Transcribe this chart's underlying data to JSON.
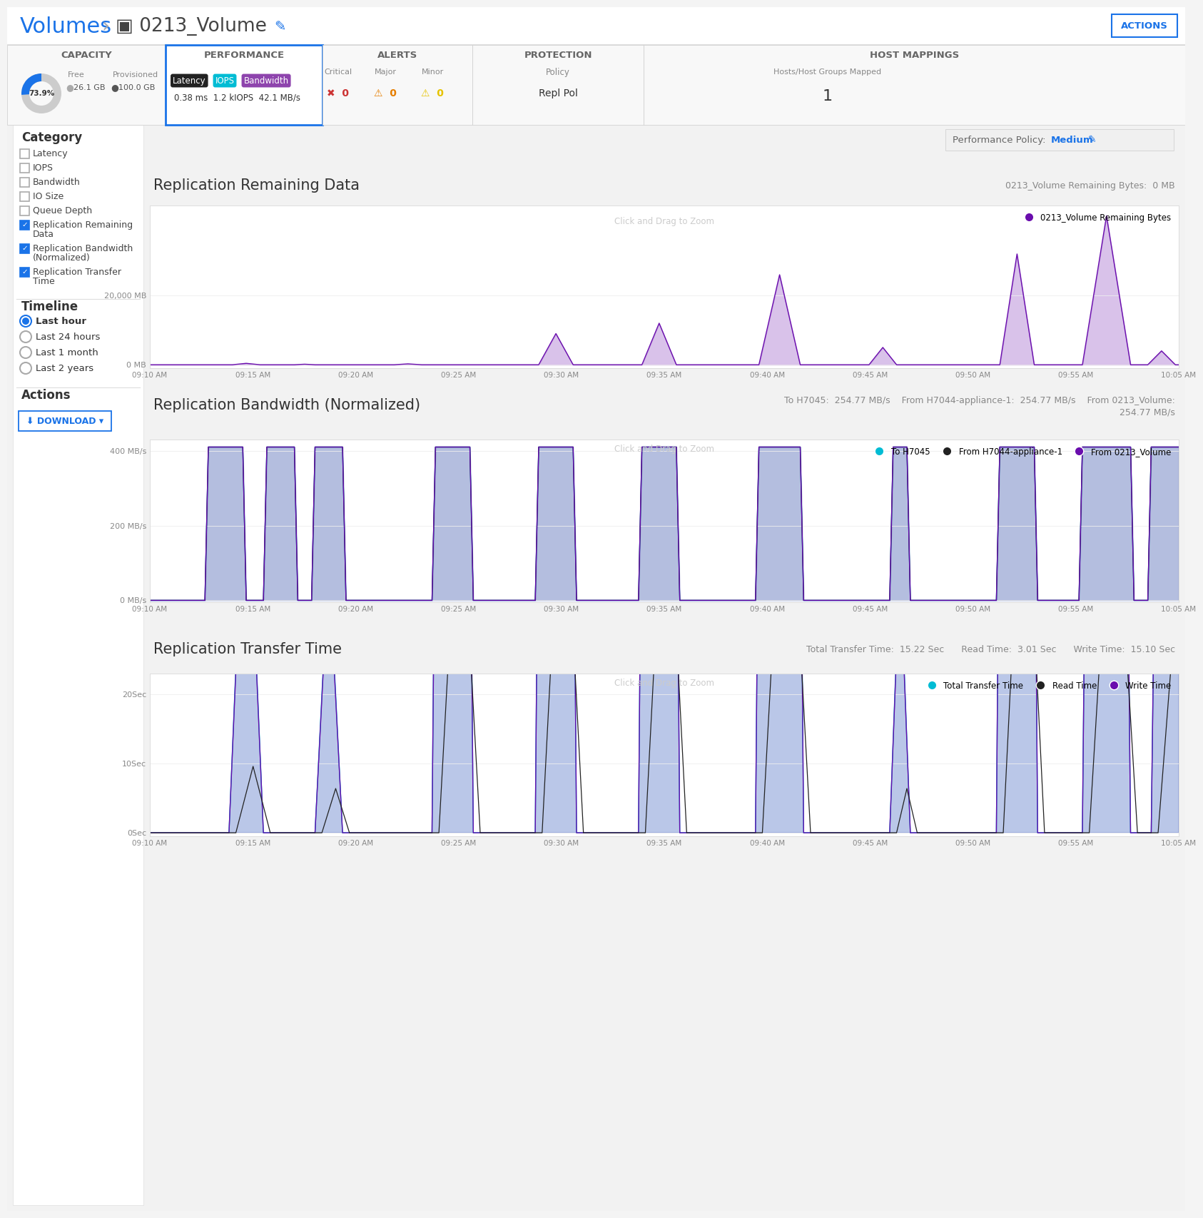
{
  "title": "Volumes > 0213_Volume",
  "actions_btn": "ACTIONS",
  "bg_color": "#f4f4f4",
  "panel_bg": "#ffffff",
  "capacity": {
    "label": "CAPACITY",
    "percent": "73.9%",
    "free": "26.1 GB",
    "provisioned": "100.0 GB"
  },
  "performance": {
    "label": "PERFORMANCE",
    "tags": [
      "Latency",
      "IOPS",
      "Bandwidth"
    ],
    "tag_colors": [
      "#222222",
      "#00bcd4",
      "#8e44ad"
    ],
    "values": "0.38 ms  1.2 kIOPS  42.1 MB/s"
  },
  "alerts": {
    "label": "ALERTS",
    "items": [
      "Critical",
      "Major",
      "Minor"
    ],
    "icons": [
      "✖",
      "⚠",
      "⚠"
    ],
    "icon_colors": [
      "#cc3333",
      "#e67e00",
      "#e6c300"
    ],
    "values": [
      0,
      0,
      0
    ]
  },
  "protection": {
    "label": "PROTECTION",
    "policy_label": "Policy",
    "policy": "Repl Pol"
  },
  "host_mappings": {
    "label": "HOST MAPPINGS",
    "sub_label": "Hosts/Host Groups Mapped",
    "hosts": "1"
  },
  "perf_policy": "Medium",
  "sidebar": {
    "category_label": "Category",
    "items": [
      "Latency",
      "IOPS",
      "Bandwidth",
      "IO Size",
      "Queue Depth",
      "Replication Remaining\nData",
      "Replication Bandwidth\n(Normalized)",
      "Replication Transfer\nTime"
    ],
    "checked": [
      false,
      false,
      false,
      false,
      false,
      true,
      true,
      true
    ],
    "timeline_label": "Timeline",
    "timeline_items": [
      "Last hour",
      "Last 24 hours",
      "Last 1 month",
      "Last 2 years"
    ],
    "timeline_selected": 0,
    "actions_label": "Actions",
    "download_btn": "DOWNLOAD"
  },
  "time_labels": [
    "09:10 AM",
    "09:15 AM",
    "09:20 AM",
    "09:25 AM",
    "09:30 AM",
    "09:35 AM",
    "09:40 AM",
    "09:45 AM",
    "09:50 AM",
    "09:55 AM",
    "10:05 AM"
  ],
  "chart1": {
    "title": "Replication Remaining Data",
    "subtitle": "0213_Volume Remaining Bytes:  0 MB",
    "ylabel_top": "20,000 MB",
    "ylabel_bottom": "0 MB",
    "legend": "0213_Volume Remaining Bytes",
    "legend_color": "#6a0dad",
    "zoom_text": "Click and Drag to Zoom"
  },
  "chart2": {
    "title": "Replication Bandwidth (Normalized)",
    "subtitle_line1": "To H7045:  254.77 MB/s    From H7044-appliance-1:  254.77 MB/s    From 0213_Volume:",
    "subtitle_line2": "254.77 MB/s",
    "ylabel_top": "400 MB/s",
    "ylabel_mid": "200 MB/s",
    "ylabel_bottom": "0 MB/s",
    "legend1": "To H7045",
    "legend1_color": "#00bcd4",
    "legend2": "From H7044-appliance-1",
    "legend2_color": "#222222",
    "legend3": "From 0213_Volume",
    "legend3_color": "#6a0dad",
    "zoom_text": "Click and Drag to Zoom"
  },
  "chart3": {
    "title": "Replication Transfer Time",
    "subtitle": "Total Transfer Time:  15.22 Sec      Read Time:  3.01 Sec      Write Time:  15.10 Sec",
    "ylabel_top": "20Sec",
    "ylabel_mid": "10Sec",
    "ylabel_bottom": "0Sec",
    "legend1": "Total Transfer Time",
    "legend1_color": "#00bcd4",
    "legend2": "Read Time",
    "legend2_color": "#222222",
    "legend3": "Write Time",
    "legend3_color": "#6a0dad",
    "zoom_text": "Click and Drag to Zoom"
  },
  "purple": "#6a0dad",
  "teal": "#00bcd4",
  "blue": "#1a73e8",
  "dark": "#222222",
  "text_gray": "#666666",
  "chart_border": "#dddddd",
  "grid_color": "#eeeeee"
}
